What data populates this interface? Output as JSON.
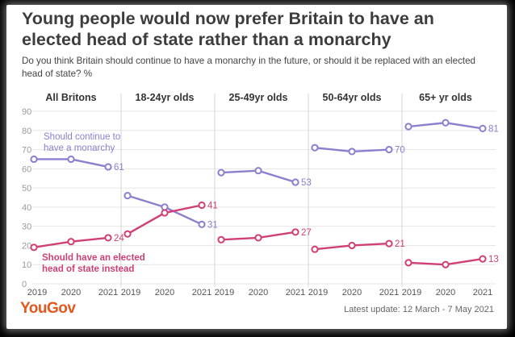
{
  "title": "Young people would now prefer Britain to have an elected head of state rather than a monarchy",
  "subtitle": "Do you think Britain should continue to have a monarchy in the future, or should it be replaced with an elected head of state? %",
  "footer": {
    "logo": "YouGov",
    "update": "Latest update: 12 March - 7 May 2021"
  },
  "colors": {
    "monarchy": "#8b7fce",
    "elected": "#d03f75",
    "grid": "#e6e6e6",
    "axis": "#9a9a9a"
  },
  "chart_data": {
    "type": "line",
    "yticks": [
      "0",
      "10",
      "20",
      "30",
      "40",
      "50",
      "60",
      "70",
      "80",
      "90"
    ],
    "ylim": [
      0,
      90
    ],
    "x": [
      "2019",
      "2020",
      "2021"
    ],
    "series_names": [
      "Should continue to have a monarchy",
      "Should have an elected head of state instead"
    ],
    "annotations": {
      "monarchy": [
        "Should continue to",
        "have a monarchy"
      ],
      "elected": [
        "Should have an elected",
        "head of state instead"
      ]
    },
    "panels": [
      {
        "name": "All Britons",
        "monarchy": [
          65,
          65,
          61
        ],
        "elected": [
          19,
          22,
          24
        ],
        "end_labels": {
          "monarchy": "61",
          "elected": "24"
        }
      },
      {
        "name": "18-24yr olds",
        "monarchy": [
          46,
          40,
          31
        ],
        "elected": [
          26,
          37,
          41
        ],
        "end_labels": {
          "monarchy": "31",
          "elected": "41"
        }
      },
      {
        "name": "25-49yr olds",
        "monarchy": [
          58,
          59,
          53
        ],
        "elected": [
          23,
          24,
          27
        ],
        "end_labels": {
          "monarchy": "53",
          "elected": "27"
        }
      },
      {
        "name": "50-64yr olds",
        "monarchy": [
          71,
          69,
          70
        ],
        "elected": [
          18,
          20,
          21
        ],
        "end_labels": {
          "monarchy": "70",
          "elected": "21"
        }
      },
      {
        "name": "65+ yr olds",
        "monarchy": [
          82,
          84,
          81
        ],
        "elected": [
          11,
          10,
          13
        ],
        "end_labels": {
          "monarchy": "81",
          "elected": "13"
        }
      }
    ]
  }
}
